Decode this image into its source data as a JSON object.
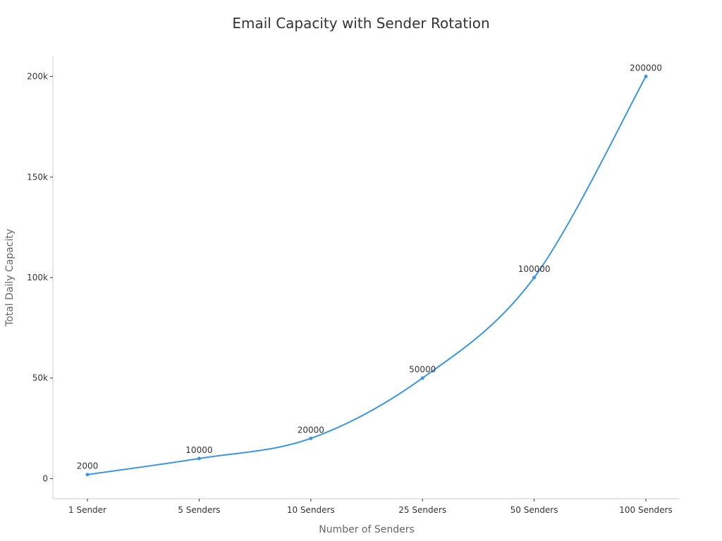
{
  "chart_data": {
    "type": "line",
    "title": "Email Capacity with Sender Rotation",
    "xlabel": "Number of Senders",
    "ylabel": "Total Daily Capacity",
    "categories": [
      "1 Sender",
      "5 Senders",
      "10 Senders",
      "25 Senders",
      "50 Senders",
      "100 Senders"
    ],
    "series": [
      {
        "values": [
          2000,
          10000,
          20000,
          50000,
          100000,
          200000
        ],
        "color": "#3b95e0"
      }
    ],
    "y_ticks": [
      0,
      50000,
      100000,
      150000,
      200000
    ],
    "y_tick_labels": [
      "0",
      "50k",
      "100k",
      "150k",
      "200k"
    ],
    "ylim": [
      -10000,
      210000
    ],
    "grid": false,
    "legend": "none",
    "smooth": true,
    "data_labels": true
  }
}
